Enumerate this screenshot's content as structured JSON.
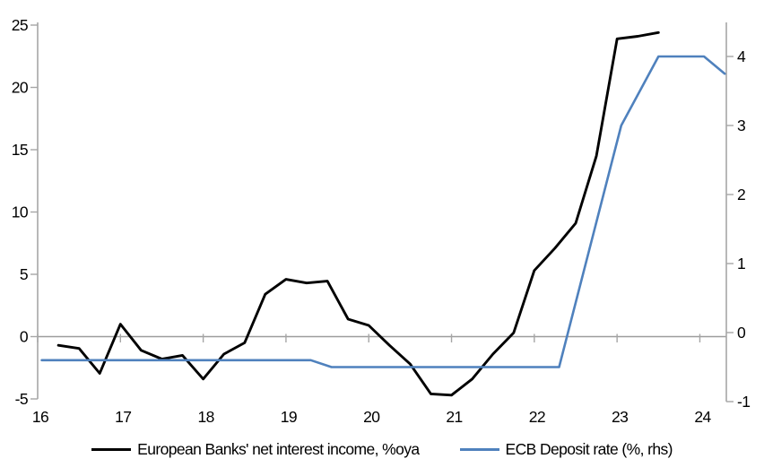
{
  "chart_data": {
    "type": "line",
    "title": "",
    "x_axis": {
      "ticks": [
        "16",
        "17",
        "18",
        "19",
        "20",
        "21",
        "22",
        "23",
        "24"
      ],
      "tick_values": [
        16,
        17,
        18,
        19,
        20,
        21,
        22,
        23,
        24
      ],
      "range": [
        16,
        24.32
      ]
    },
    "left_axis": {
      "ticks": [
        "25",
        "20",
        "15",
        "10",
        "5",
        "0",
        "-5"
      ],
      "tick_values": [
        25,
        20,
        15,
        10,
        5,
        0,
        -5
      ],
      "range": [
        -5,
        25
      ]
    },
    "right_axis": {
      "ticks": [
        "4",
        "3",
        "2",
        "1",
        "0",
        "-1"
      ],
      "tick_values": [
        4,
        3,
        2,
        1,
        0,
        -1
      ],
      "range": [
        -1,
        4
      ]
    },
    "grid": "zero-line-only",
    "legend_position": "bottom-center",
    "series": [
      {
        "name": "European Banks' net interest income, %oya",
        "axis": "left",
        "color": "#000000",
        "points": [
          [
            16.25,
            -0.7
          ],
          [
            16.5,
            -0.95
          ],
          [
            16.75,
            -2.95
          ],
          [
            17.0,
            1.0
          ],
          [
            17.25,
            -1.1
          ],
          [
            17.5,
            -1.8
          ],
          [
            17.75,
            -1.5
          ],
          [
            18.0,
            -3.4
          ],
          [
            18.25,
            -1.4
          ],
          [
            18.5,
            -0.5
          ],
          [
            18.75,
            3.4
          ],
          [
            19.0,
            4.6
          ],
          [
            19.25,
            4.3
          ],
          [
            19.5,
            4.45
          ],
          [
            19.75,
            1.4
          ],
          [
            20.0,
            0.9
          ],
          [
            20.25,
            -0.7
          ],
          [
            20.5,
            -2.2
          ],
          [
            20.75,
            -4.6
          ],
          [
            21.0,
            -4.7
          ],
          [
            21.25,
            -3.4
          ],
          [
            21.5,
            -1.4
          ],
          [
            21.75,
            0.3
          ],
          [
            22.0,
            5.3
          ],
          [
            22.25,
            7.1
          ],
          [
            22.5,
            9.1
          ],
          [
            22.75,
            14.5
          ],
          [
            23.0,
            23.9
          ],
          [
            23.25,
            24.1
          ],
          [
            23.5,
            24.4
          ]
        ]
      },
      {
        "name": "ECB Deposit rate (%, rhs)",
        "axis": "right",
        "color": "#4f81bd",
        "points": [
          [
            16.05,
            -0.4
          ],
          [
            19.3,
            -0.4
          ],
          [
            19.55,
            -0.5
          ],
          [
            22.3,
            -0.5
          ],
          [
            23.05,
            3.0
          ],
          [
            23.5,
            4.0
          ],
          [
            24.05,
            4.0
          ],
          [
            24.3,
            3.75
          ]
        ]
      }
    ],
    "colors": {
      "axis_line": "#a6a6a6",
      "zero_line": "#9d9d9d",
      "text": "#000000",
      "background": "#ffffff"
    }
  }
}
